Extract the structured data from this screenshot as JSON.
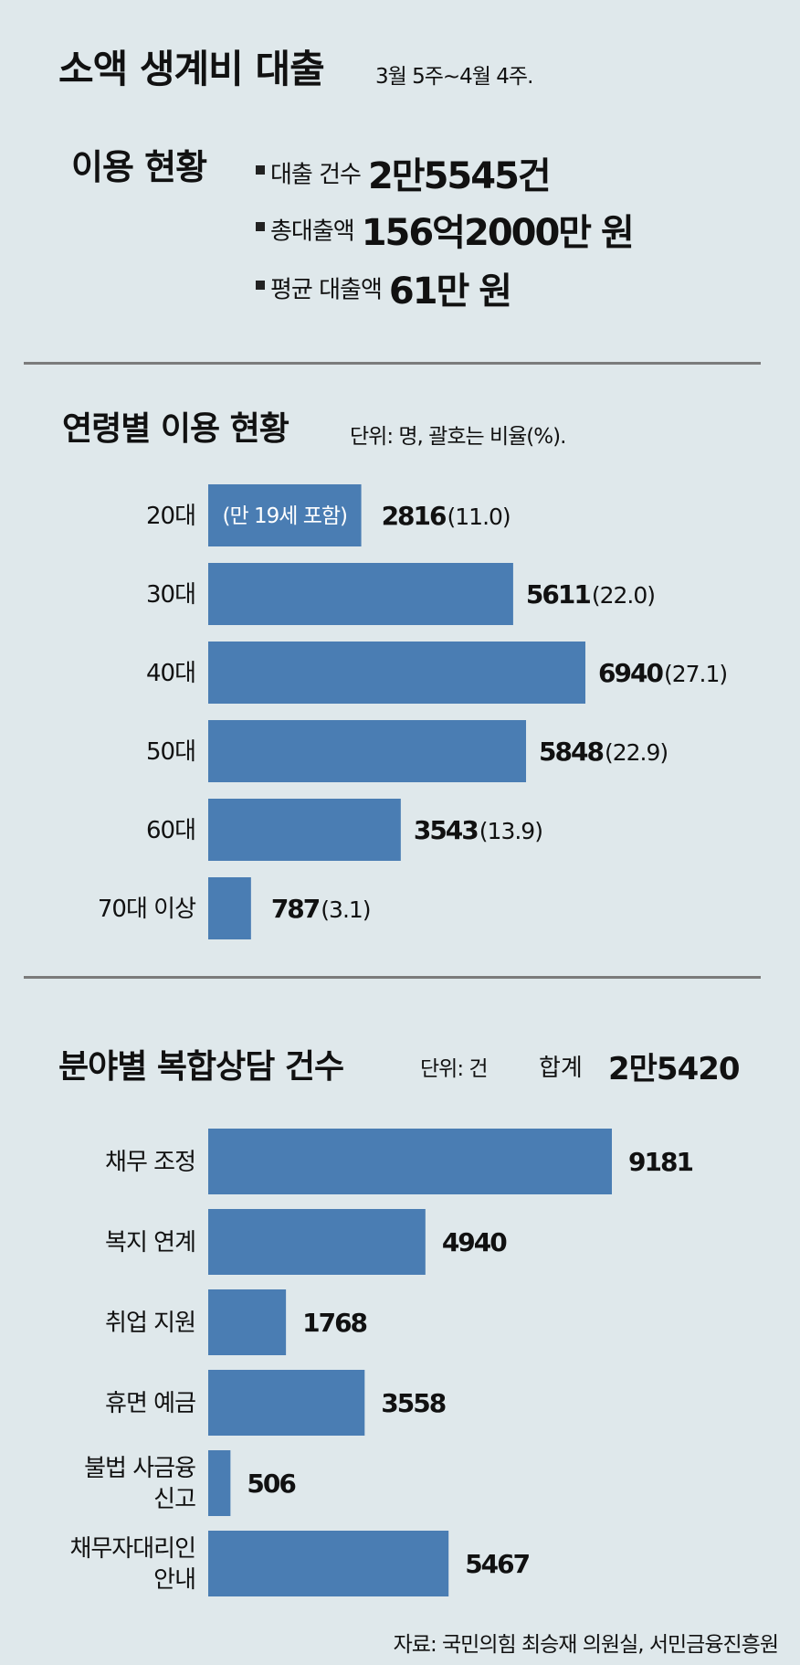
{
  "header": {
    "title": "소액 생계비 대출",
    "period": "3월 5주~4월 4주."
  },
  "usage": {
    "title": "이용 현황",
    "stats": [
      {
        "label": "대출 건수",
        "value": "2만5545건"
      },
      {
        "label": "총대출액",
        "value": "156억2000만 원"
      },
      {
        "label": "평균 대출액",
        "value": "61만 원"
      }
    ]
  },
  "age_section": {
    "title": "연령별 이용 현황",
    "unit": "단위: 명, 괄호는 비율(%)."
  },
  "field_section": {
    "title": "분야별 복합상담 건수",
    "unit": "단위: 건",
    "total_label": "합계",
    "total_value": "2만5420"
  },
  "source": "자료: 국민의힘 최승재 의원실, 서민금융진흥원",
  "colors": {
    "bar": "#4a7db3",
    "background": "#dfe8eb",
    "divider": "#7b7b7b"
  },
  "chart_data": [
    {
      "type": "bar",
      "orientation": "horizontal",
      "title": "연령별 이용 현황",
      "categories": [
        "20대",
        "30대",
        "40대",
        "50대",
        "60대",
        "70대 이상"
      ],
      "values": [
        2816,
        5611,
        6940,
        5848,
        3543,
        787
      ],
      "value_labels": [
        "2816",
        "5611",
        "6940",
        "5848",
        "3543",
        "787"
      ],
      "percent_labels": [
        "(11.0)",
        "(22.0)",
        "(27.1)",
        "(22.9)",
        "(13.9)",
        "(3.1)"
      ],
      "bar_note": {
        "category": "20대",
        "text": "(만 19세 포함)"
      }
    },
    {
      "type": "bar",
      "orientation": "horizontal",
      "title": "분야별 복합상담 건수",
      "categories": [
        [
          "채무 조정"
        ],
        [
          "복지 연계"
        ],
        [
          "취업 지원"
        ],
        [
          "휴면 예금"
        ],
        [
          "불법 사금융",
          "신고"
        ],
        [
          "채무자대리인",
          "안내"
        ]
      ],
      "values": [
        9181,
        4940,
        1768,
        3558,
        506,
        5467
      ],
      "value_labels": [
        "9181",
        "4940",
        "1768",
        "3558",
        "506",
        "5467"
      ]
    }
  ]
}
